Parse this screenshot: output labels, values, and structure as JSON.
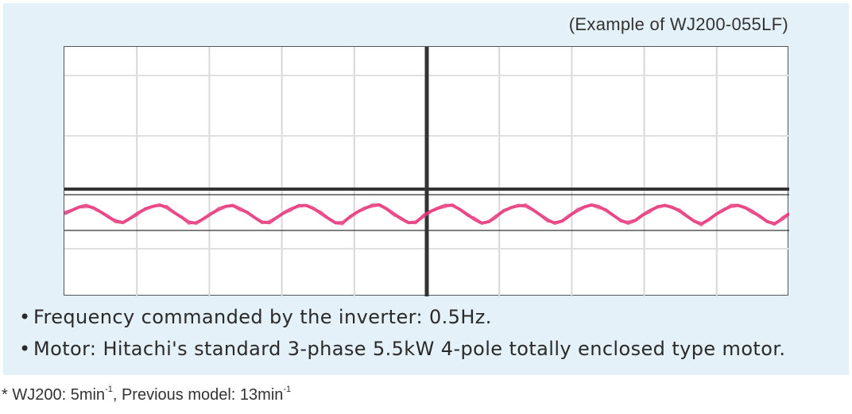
{
  "chart_data": {
    "type": "line",
    "title": "",
    "xlabel": "",
    "ylabel": "",
    "grid": true,
    "series": [
      {
        "color": "#e6357a",
        "values": [
          0.0,
          0.6,
          1.2,
          1.5,
          1.0,
          0.3,
          -0.5,
          -1.4,
          -1.6,
          -0.8,
          0.1,
          0.8,
          1.3,
          1.6,
          1.1,
          0.2,
          -0.6,
          -1.5,
          -1.7,
          -0.9,
          0.0,
          0.7,
          1.3,
          1.5,
          0.9,
          0.2,
          -0.7,
          -1.5,
          -1.6,
          -0.7,
          0.2,
          0.9,
          1.4,
          1.5,
          1.0,
          0.1,
          -0.8,
          -1.6,
          -1.6,
          -0.6,
          0.3,
          1.0,
          1.4,
          1.6,
          0.9,
          0.0,
          -0.9,
          -1.6,
          -1.5,
          -0.5,
          0.4,
          1.0,
          1.5,
          1.5,
          0.8,
          -0.1,
          -1.0,
          -1.7,
          -1.4,
          -0.4,
          0.5,
          1.1,
          1.5,
          1.4,
          0.7,
          -0.2,
          -1.1,
          -1.7,
          -1.3,
          -0.3,
          0.5,
          1.2,
          1.6,
          1.3,
          0.6,
          -0.3,
          -1.2,
          -1.7,
          -1.2,
          -0.2,
          0.6,
          1.2,
          1.5,
          1.2,
          0.5,
          -0.4,
          -1.3,
          -1.8,
          -1.1,
          -0.1,
          0.7,
          1.3,
          1.5,
          1.1,
          0.4,
          -0.5,
          -1.4,
          -1.8,
          -1.0,
          0.0
        ]
      }
    ],
    "ylim": [
      -10,
      10
    ]
  },
  "example_label": "(Example of WJ200-055LF)",
  "bullets": [
    "Frequency commanded by the inverter: 0.5Hz.",
    "Motor: Hitachi's standard 3-phase 5.5kW 4-pole totally enclosed type motor."
  ],
  "bullet_glyph": "•",
  "footnote": {
    "prefix": "* WJ200: 5min",
    "exp1": "-1",
    "middle": ", Previous model: 13min",
    "exp2": "-1"
  }
}
